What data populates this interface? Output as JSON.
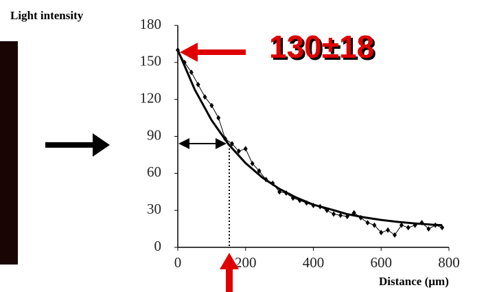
{
  "chart_data": {
    "type": "line",
    "y_label": "Light intensity",
    "x_label": "Distance (µm)",
    "annotation": "130±18",
    "xlim": [
      0,
      800
    ],
    "xticks": [
      0,
      200,
      400,
      600,
      800
    ],
    "ylim": [
      0,
      180
    ],
    "yticks": [
      0,
      30,
      60,
      90,
      120,
      150,
      180
    ],
    "grid": false,
    "series": [
      {
        "color": "#000000",
        "marker": "diamond",
        "x": [
          0,
          20,
          40,
          60,
          80,
          100,
          120,
          140,
          160,
          180,
          200,
          220,
          240,
          260,
          280,
          300,
          320,
          340,
          360,
          380,
          400,
          420,
          440,
          460,
          480,
          500,
          520,
          540,
          560,
          580,
          600,
          620,
          640,
          660,
          680,
          700,
          720,
          740,
          760,
          780
        ],
        "values": [
          160,
          150,
          142,
          132,
          122,
          115,
          105,
          88,
          84,
          78,
          80,
          68,
          62,
          55,
          52,
          45,
          44,
          40,
          38,
          36,
          34,
          33,
          30,
          27,
          26,
          25,
          28,
          24,
          20,
          18,
          12,
          14,
          10,
          18,
          16,
          18,
          20,
          15,
          18,
          16
        ]
      },
      {
        "color": "#000000",
        "marker": "none",
        "x": [
          0,
          50,
          100,
          150,
          200,
          250,
          300,
          350,
          400,
          450,
          500,
          550,
          600,
          650,
          700,
          750,
          780
        ],
        "values": [
          160,
          128,
          103,
          83.5,
          68.3,
          56.5,
          47.4,
          40.3,
          34.6,
          30.9,
          26.9,
          24.3,
          22.2,
          20.6,
          19.4,
          18.4,
          18
        ]
      }
    ]
  }
}
